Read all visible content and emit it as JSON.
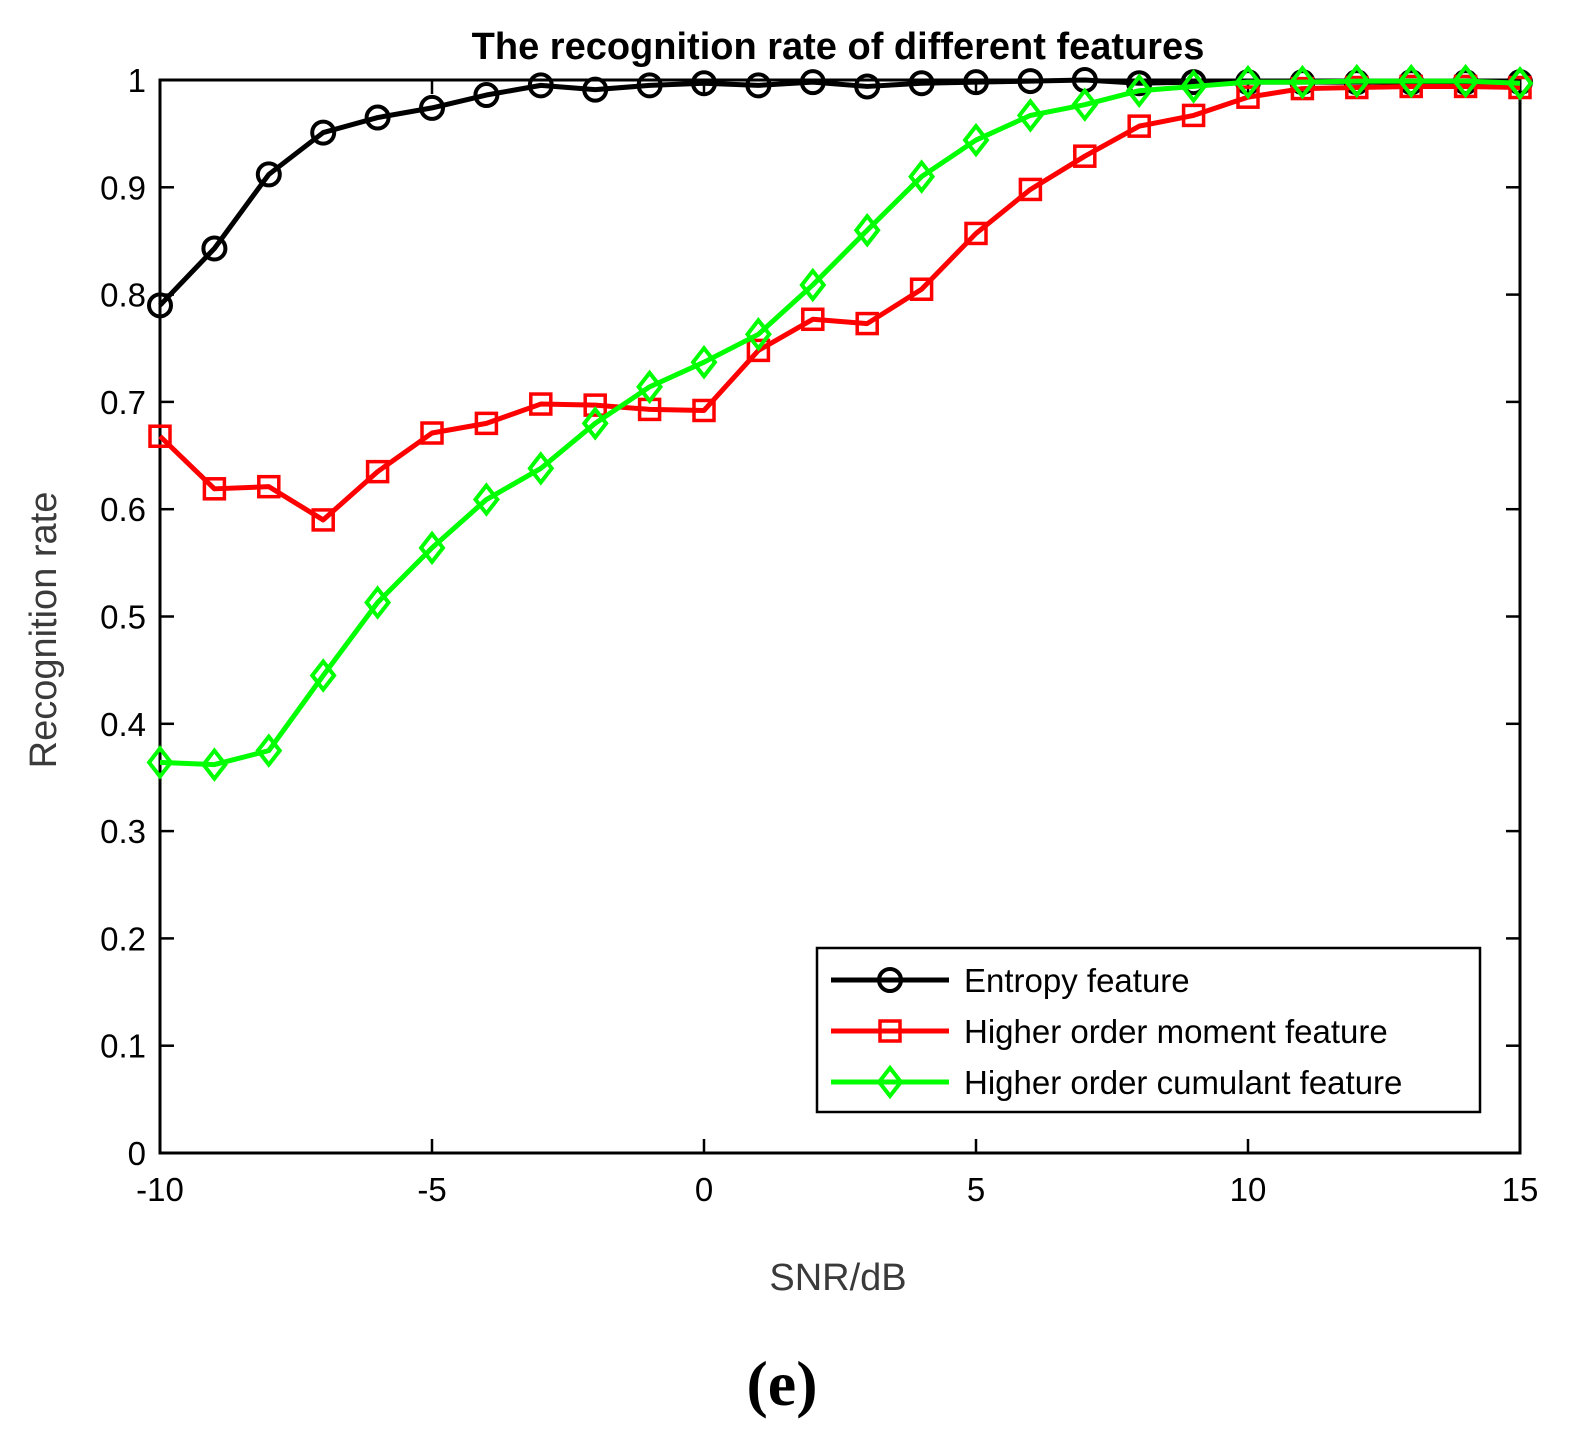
{
  "chart_data": {
    "type": "line",
    "title": "The recognition rate of different features",
    "xlabel": "SNR/dB",
    "ylabel": "Recognition rate",
    "xlim": [
      -10,
      15
    ],
    "ylim": [
      0,
      1
    ],
    "x_ticks": [
      -10,
      -5,
      0,
      5,
      10,
      15
    ],
    "y_ticks": [
      0,
      0.1,
      0.2,
      0.3,
      0.4,
      0.5,
      0.6,
      0.7,
      0.8,
      0.9,
      1
    ],
    "x_tick_labels": [
      "-10",
      "-5",
      "0",
      "5",
      "10",
      "15"
    ],
    "y_tick_labels": [
      "0",
      "0.1",
      "0.2",
      "0.3",
      "0.4",
      "0.5",
      "0.6",
      "0.7",
      "0.8",
      "0.9",
      "1"
    ],
    "grid": false,
    "legend_position": "bottom-right",
    "x": [
      -10,
      -9,
      -8,
      -7,
      -6,
      -5,
      -4,
      -3,
      -2,
      -1,
      0,
      1,
      2,
      3,
      4,
      5,
      6,
      7,
      8,
      9,
      10,
      11,
      12,
      13,
      14,
      15
    ],
    "series": [
      {
        "name": "Entropy feature",
        "color": "#000000",
        "marker": "circle",
        "values": [
          0.79,
          0.843,
          0.912,
          0.951,
          0.965,
          0.974,
          0.986,
          0.995,
          0.991,
          0.995,
          0.997,
          0.995,
          0.998,
          0.994,
          0.997,
          0.998,
          0.999,
          1.0,
          0.997,
          0.998,
          0.998,
          0.998,
          0.998,
          0.998,
          0.998,
          0.998
        ]
      },
      {
        "name": "Higher order moment feature",
        "color": "#ff0000",
        "marker": "square",
        "values": [
          0.668,
          0.619,
          0.621,
          0.59,
          0.635,
          0.671,
          0.68,
          0.698,
          0.697,
          0.693,
          0.692,
          0.748,
          0.777,
          0.773,
          0.805,
          0.857,
          0.898,
          0.929,
          0.957,
          0.967,
          0.984,
          0.992,
          0.993,
          0.994,
          0.994,
          0.993
        ]
      },
      {
        "name": "Higher order cumulant feature",
        "color": "#00ff00",
        "marker": "diamond",
        "values": [
          0.364,
          0.362,
          0.375,
          0.445,
          0.513,
          0.564,
          0.609,
          0.638,
          0.68,
          0.714,
          0.737,
          0.763,
          0.809,
          0.86,
          0.91,
          0.944,
          0.967,
          0.977,
          0.99,
          0.994,
          0.998,
          0.998,
          0.999,
          0.999,
          0.999,
          0.997
        ]
      }
    ]
  },
  "panel_label": "(e)"
}
